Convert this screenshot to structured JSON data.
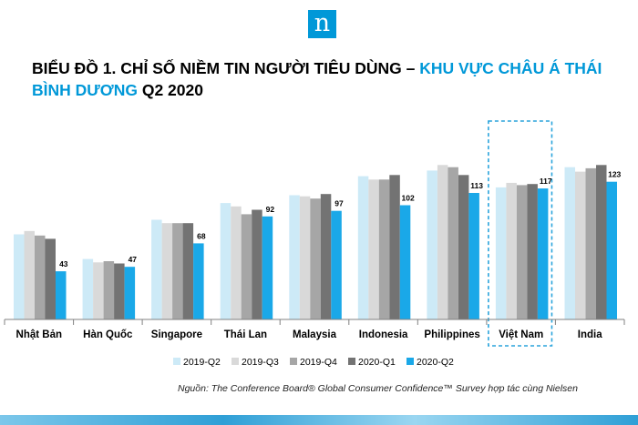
{
  "logo": {
    "letter": "n"
  },
  "title": {
    "part1": "BIỂU ĐỒ 1. CHỈ SỐ NIỀM TIN NGƯỜI TIÊU DÙNG – ",
    "part2": "KHU VỰC CHÂU Á THÁI BÌNH DƯƠNG",
    "part3": " Q2 2020"
  },
  "colors": {
    "brand": "#0098d8",
    "series": [
      "#cdeaf7",
      "#d9d9d9",
      "#a6a6a6",
      "#737373",
      "#1aa8e8"
    ],
    "highlight_border": "#2aa4dc"
  },
  "chart_data": {
    "type": "bar",
    "categories": [
      "Nhật Bản",
      "Hàn Quốc",
      "Singapore",
      "Thái Lan",
      "Malaysia",
      "Indonesia",
      "Philippines",
      "Việt Nam",
      "India"
    ],
    "series": [
      {
        "name": "2019-Q2",
        "values": [
          76,
          54,
          89,
          104,
          111,
          128,
          133,
          118,
          136
        ]
      },
      {
        "name": "2019-Q3",
        "values": [
          79,
          51,
          86,
          101,
          110,
          125,
          138,
          122,
          132
        ]
      },
      {
        "name": "2019-Q4",
        "values": [
          75,
          52,
          86,
          94,
          108,
          125,
          136,
          120,
          135
        ]
      },
      {
        "name": "2020-Q1",
        "values": [
          72,
          50,
          86,
          98,
          112,
          129,
          129,
          121,
          138
        ]
      },
      {
        "name": "2020-Q2",
        "values": [
          43,
          47,
          68,
          92,
          97,
          102,
          113,
          117,
          123
        ]
      }
    ],
    "data_labels": [
      "43",
      "47",
      "68",
      "92",
      "97",
      "102",
      "113",
      "117",
      "123"
    ],
    "highlighted_category": "Việt Nam",
    "ylim": [
      0,
      150
    ],
    "grid": false,
    "legend": "bottom"
  },
  "source": "Nguồn: The Conference Board® Global Consumer Confidence™ Survey hợp tác cùng Nielsen"
}
